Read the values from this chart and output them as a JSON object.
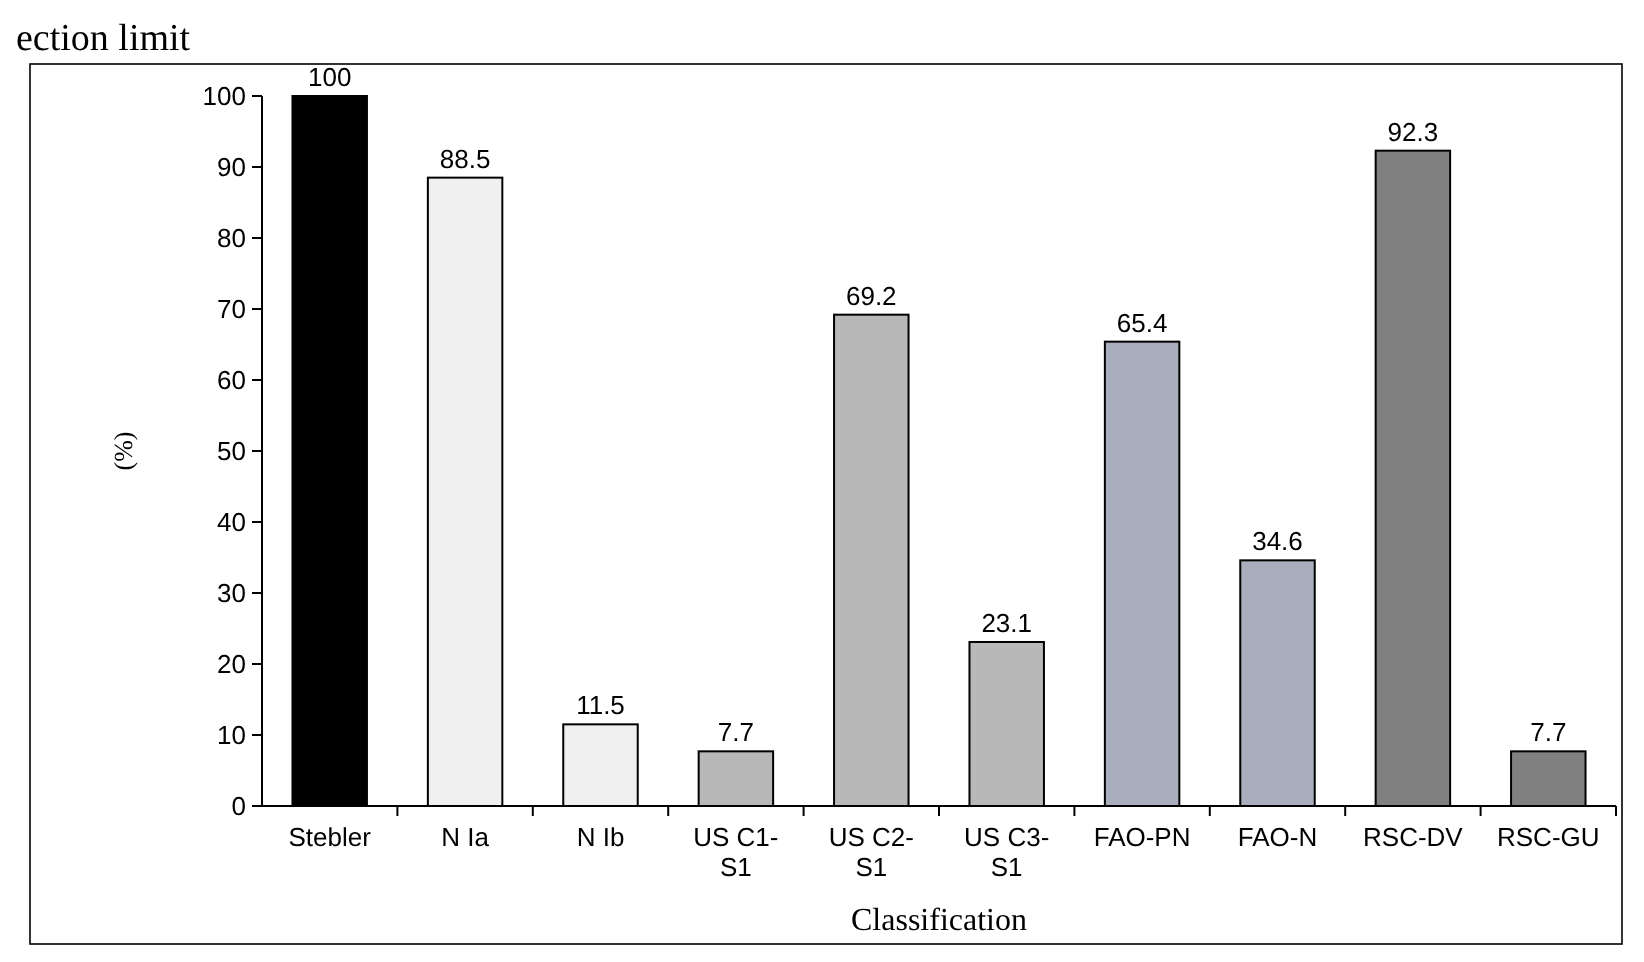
{
  "chart_data": {
    "type": "bar",
    "xlabel": "Classification",
    "ylabel": "(%)",
    "categories": [
      "Stebler",
      "N Ia",
      "N Ib",
      "US C1-\nS1",
      "US C2-\nS1",
      "US C3-\nS1",
      "FAO-PN",
      "FAO-N",
      "RSC-DV",
      "RSC-GU"
    ],
    "values": [
      100,
      88.5,
      11.5,
      7.7,
      69.2,
      23.1,
      65.4,
      34.6,
      92.3,
      7.7
    ],
    "colors": [
      "#000000",
      "#f0f0f0",
      "#f0f0f0",
      "#b8b8b8",
      "#b8b8b8",
      "#b8b8b8",
      "#a8aebb",
      "#a8aebb",
      "#808080",
      "#808080"
    ],
    "ylim": [
      0,
      100
    ],
    "yticks": [
      0,
      10,
      20,
      30,
      40,
      50,
      60,
      70,
      80,
      90,
      100
    ],
    "data_labels": true,
    "grid": false,
    "annotations": [
      "ection limit"
    ]
  }
}
